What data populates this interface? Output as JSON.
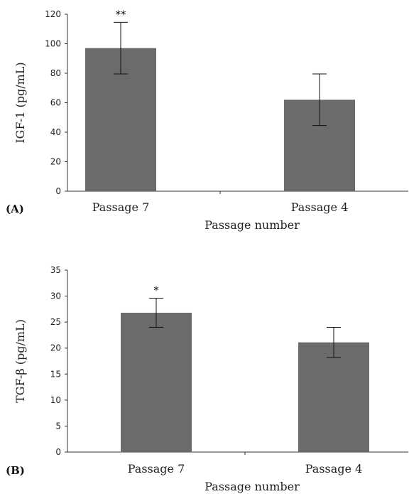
{
  "chart_data": [
    {
      "type": "bar",
      "panel_label": "(A)",
      "categories": [
        "Passage 7",
        "Passage 4"
      ],
      "values": [
        97,
        62
      ],
      "errors": [
        17.5,
        17.5
      ],
      "significance": [
        "**",
        ""
      ],
      "xlabel": "Passage number",
      "ylabel": "IGF-1 (pg/mL)",
      "ylim": [
        0,
        120
      ],
      "yticks": [
        "0",
        "20",
        "40",
        "60",
        "80",
        "100",
        "120"
      ],
      "bar_color": "#6b6b6b",
      "grid": false
    },
    {
      "type": "bar",
      "panel_label": "(B)",
      "categories": [
        "Passage 7",
        "Passage 4"
      ],
      "values": [
        26.8,
        21.1
      ],
      "errors": [
        2.8,
        2.9
      ],
      "significance": [
        "*",
        ""
      ],
      "xlabel": "Passage number",
      "ylabel": "TGF-β (pg/mL)",
      "ylim": [
        0,
        35
      ],
      "yticks": [
        "0",
        "5",
        "10",
        "15",
        "20",
        "25",
        "30",
        "35"
      ],
      "bar_color": "#6b6b6b",
      "grid": false
    }
  ]
}
